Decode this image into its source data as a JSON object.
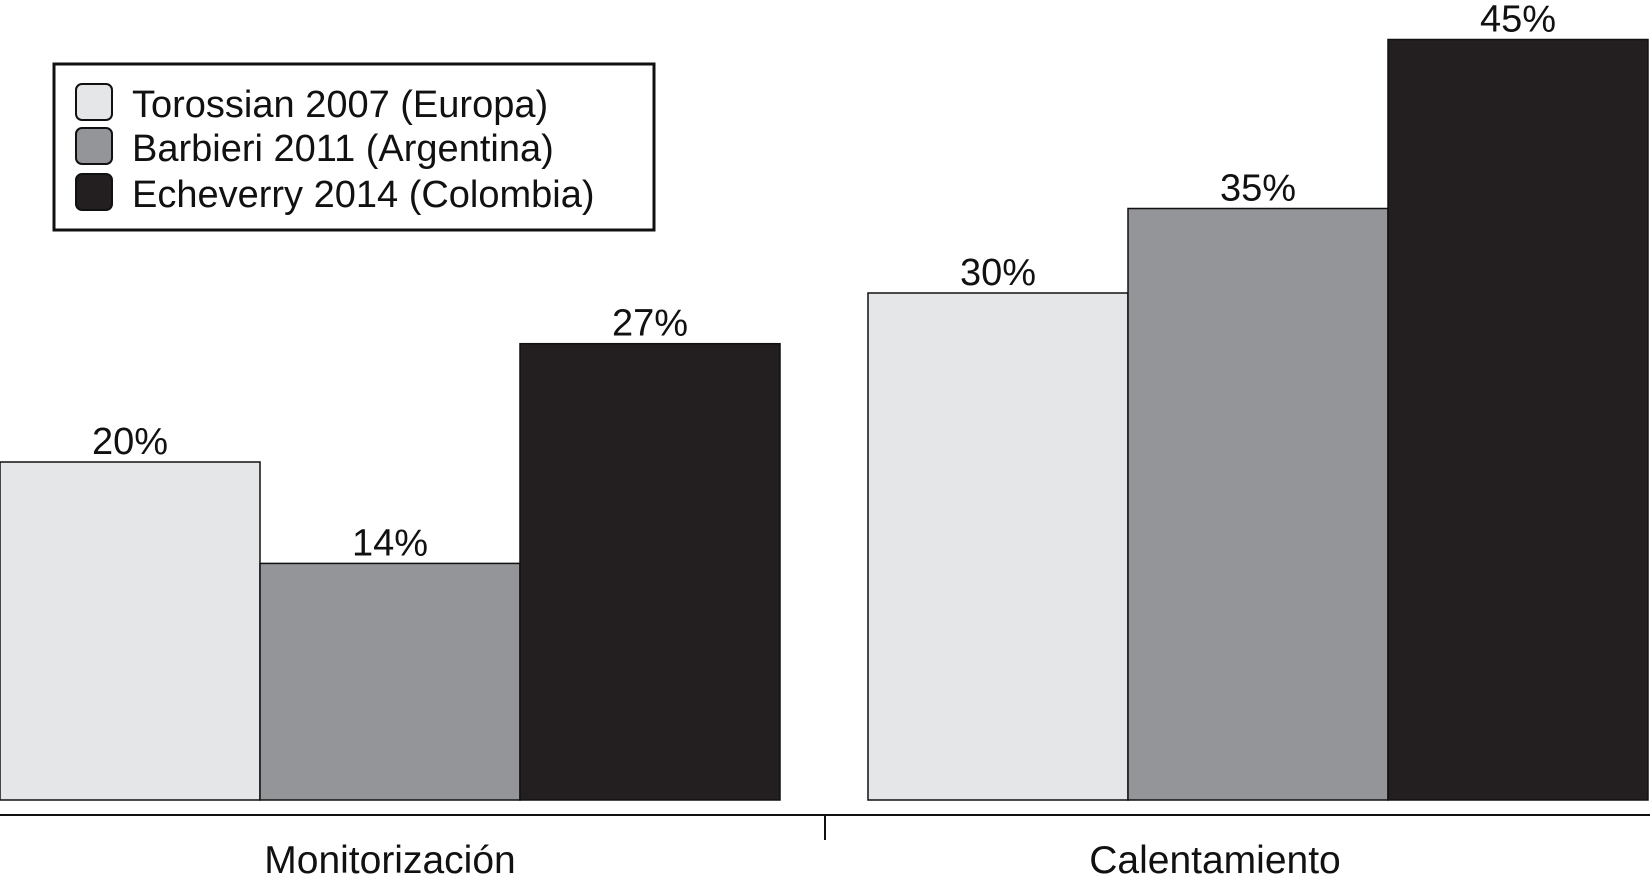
{
  "chart_data": {
    "type": "bar",
    "categories": [
      "Monitorización",
      "Calentamiento"
    ],
    "series": [
      {
        "name": "Torossian 2007 (Europa)",
        "color": "#e5e6e8",
        "values": [
          20,
          30
        ],
        "value_labels": [
          "20%",
          "30%"
        ]
      },
      {
        "name": "Barbieri 2011 (Argentina)",
        "color": "#939598",
        "values": [
          14,
          35
        ],
        "value_labels": [
          "14%",
          "35%"
        ]
      },
      {
        "name": "Echeverry 2014 (Colombia)",
        "color": "#231f20",
        "values": [
          27,
          45
        ],
        "value_labels": [
          "27%",
          "45%"
        ]
      }
    ],
    "title": "",
    "xlabel": "",
    "ylabel": "",
    "ylim": [
      0,
      45
    ],
    "grid": false,
    "legend_position": "top-left"
  }
}
